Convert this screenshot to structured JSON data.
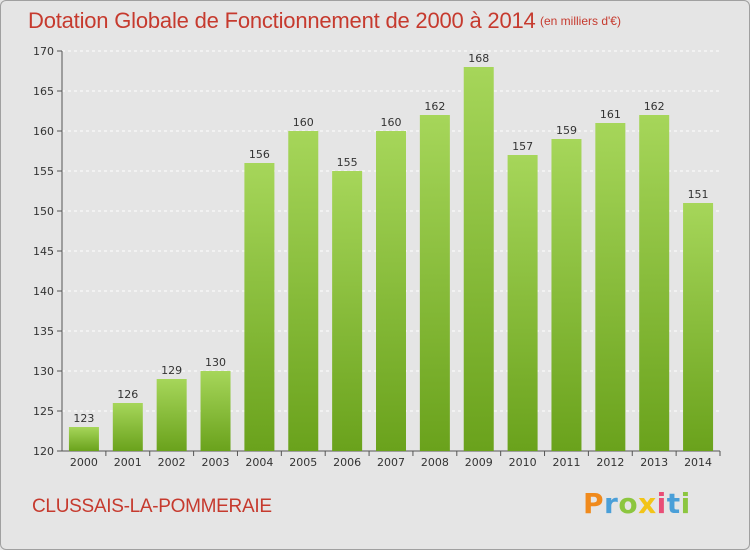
{
  "header": {
    "title": "Dotation Globale de Fonctionnement de 2000 à 2014",
    "subtitle": "(en milliers d'€)"
  },
  "footer": {
    "commune": "CLUSSAIS-LA-POMMERAIE",
    "logo": "Proxiti"
  },
  "colors": {
    "title": "#c63a2e",
    "bar_light": "#a6d65a",
    "bar_dark": "#6aa21c",
    "background": "#e5e5e5",
    "grid": "#ffffff"
  },
  "chart_data": {
    "type": "bar",
    "title": "Dotation Globale de Fonctionnement de 2000 à 2014",
    "subtitle": "(en milliers d'€)",
    "xlabel": "",
    "ylabel": "",
    "categories": [
      "2000",
      "2001",
      "2002",
      "2003",
      "2004",
      "2005",
      "2006",
      "2007",
      "2008",
      "2009",
      "2010",
      "2011",
      "2012",
      "2013",
      "2014"
    ],
    "values": [
      123,
      126,
      129,
      130,
      156,
      160,
      155,
      160,
      162,
      168,
      157,
      159,
      161,
      162,
      151
    ],
    "ylim": [
      120,
      170
    ],
    "yticks": [
      120,
      125,
      130,
      135,
      140,
      145,
      150,
      155,
      160,
      165,
      170
    ],
    "grid": "horizontal dashed",
    "legend": "none"
  }
}
